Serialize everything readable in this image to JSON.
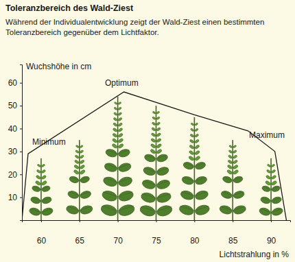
{
  "chart_data": {
    "type": "bar",
    "title": "Toleranzbereich des Wald-Ziest",
    "subtitle": "Während der Individualentwicklung zeigt der Wald-Ziest einen bestimmten Toleranzbereich gegenüber dem Lichtfaktor.",
    "x_label": "Lichtstrahlung in %",
    "y_label": "Wuchshöhe in cm",
    "x": [
      60,
      65,
      70,
      75,
      80,
      85,
      90
    ],
    "xlim": [
      57.5,
      92.5
    ],
    "xticks": [
      60,
      65,
      70,
      75,
      80,
      85,
      90
    ],
    "ylim": [
      0,
      68
    ],
    "yticks": [
      10,
      20,
      30,
      40,
      50,
      60
    ],
    "series": [
      {
        "type": "bar",
        "marker": "plant",
        "color": "#4f7f2c",
        "values": [
          27,
          35,
          54,
          50,
          45,
          35,
          27
        ]
      },
      {
        "type": "line",
        "line_style": "solid",
        "color": "#1a1a1a",
        "x": [
          57.5,
          58.3,
          70.8,
          80,
          87,
          90.5,
          92
        ],
        "values": [
          0,
          29,
          56,
          46,
          39,
          30,
          0
        ]
      }
    ],
    "annotations": [
      {
        "text": "Minimum"
      },
      {
        "text": "Optimum"
      },
      {
        "text": "Maximum"
      }
    ]
  }
}
